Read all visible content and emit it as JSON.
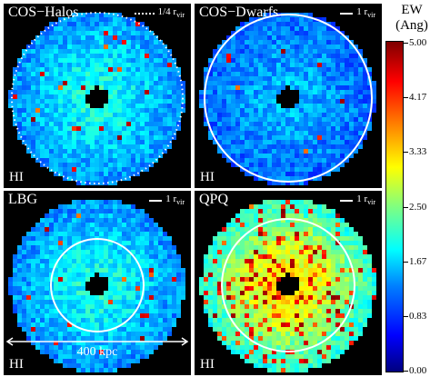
{
  "panels": [
    {
      "title": "COS−Halos",
      "legend_label": "1/4 r",
      "legend_sub": "vir",
      "legend_style": "dotted",
      "ion": "HI",
      "intensity": "medium",
      "vir_circle": "dotted"
    },
    {
      "title": "COS−Dwarfs",
      "legend_label": "1 r",
      "legend_sub": "vir",
      "legend_style": "solid",
      "ion": "HI",
      "intensity": "low",
      "vir_circle": "solid"
    },
    {
      "title": "LBG",
      "legend_label": "1 r",
      "legend_sub": "vir",
      "legend_style": "solid",
      "ion": "HI",
      "intensity": "medium",
      "vir_circle": "solid",
      "scale_label": "400 kpc"
    },
    {
      "title": "QPQ",
      "legend_label": "1 r",
      "legend_sub": "vir",
      "legend_style": "solid",
      "ion": "HI",
      "intensity": "high",
      "vir_circle": "solid"
    }
  ],
  "colorbar": {
    "title_line1": "EW",
    "title_line2": "(Ang)",
    "ticks": [
      "5.00",
      "4.17",
      "3.33",
      "2.50",
      "1.67",
      "0.83",
      "0.00"
    ],
    "min": 0.0,
    "max": 5.0,
    "colormap": "jet"
  }
}
